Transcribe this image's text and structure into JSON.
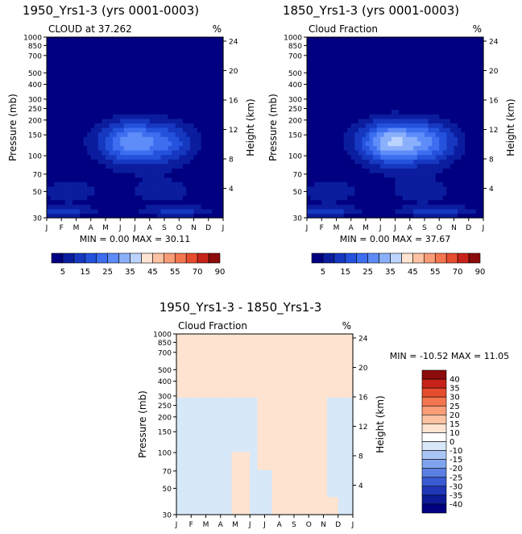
{
  "chart_data": [
    {
      "type": "heatmap",
      "title": "1950_Yrs1-3 (yrs 0001-0003)",
      "subtitle": "CLOUD at 37.262",
      "units": "%",
      "ylabel": "Pressure (mb)",
      "ylabel_right": "Height (km)",
      "x_ticks": [
        "J",
        "F",
        "M",
        "A",
        "M",
        "J",
        "J",
        "A",
        "S",
        "O",
        "N",
        "D",
        "J"
      ],
      "y_ticks": [
        "30",
        "50",
        "70",
        "100",
        "150",
        "200",
        "250",
        "300",
        "400",
        "500",
        "700",
        "850",
        "1000"
      ],
      "y_ticks_right": [
        "24",
        "20",
        "16",
        "12",
        "8",
        "4"
      ],
      "stats": "MIN =   0.00 MAX =  30.11",
      "min": 0.0,
      "max": 30.11,
      "colorbar_labels": [
        "5",
        "15",
        "25",
        "35",
        "45",
        "55",
        "70",
        "90"
      ],
      "field": {
        "peak_month": 6.5,
        "peak_pressure": 230,
        "peak_value": 30.11,
        "low_lobe_value": 10
      }
    },
    {
      "type": "heatmap",
      "title": "1850_Yrs1-3 (yrs 0001-0003)",
      "subtitle": "Cloud Fraction",
      "units": "%",
      "ylabel": "Pressure (mb)",
      "ylabel_right": "Height (km)",
      "x_ticks": [
        "J",
        "F",
        "M",
        "A",
        "M",
        "J",
        "J",
        "A",
        "S",
        "O",
        "N",
        "D",
        "J"
      ],
      "y_ticks": [
        "30",
        "50",
        "70",
        "100",
        "150",
        "200",
        "250",
        "300",
        "400",
        "500",
        "700",
        "850",
        "1000"
      ],
      "y_ticks_right": [
        "24",
        "20",
        "16",
        "12",
        "8",
        "4"
      ],
      "stats": "MIN =   0.00 MAX =  37.67",
      "min": 0.0,
      "max": 37.67,
      "colorbar_labels": [
        "5",
        "15",
        "25",
        "35",
        "45",
        "55",
        "70",
        "90"
      ],
      "field": {
        "peak_month": 6.6,
        "peak_pressure": 230,
        "peak_value": 37.67,
        "low_lobe_value": 12
      }
    },
    {
      "type": "heatmap",
      "title": "1950_Yrs1-3 - 1850_Yrs1-3",
      "subtitle": "Cloud Fraction",
      "units": "%",
      "ylabel": "Pressure (mb)",
      "ylabel_right": "Height (km)",
      "x_ticks": [
        "J",
        "F",
        "M",
        "A",
        "M",
        "J",
        "J",
        "A",
        "S",
        "O",
        "N",
        "D",
        "J"
      ],
      "y_ticks": [
        "30",
        "50",
        "70",
        "100",
        "150",
        "200",
        "250",
        "300",
        "400",
        "500",
        "700",
        "850",
        "1000"
      ],
      "y_ticks_right": [
        "24",
        "20",
        "16",
        "12",
        "8",
        "4"
      ],
      "stats": "MIN = -10.52 MAX =  11.05",
      "min": -10.52,
      "max": 11.05,
      "colorbar_labels": [
        "40",
        "35",
        "30",
        "25",
        "20",
        "15",
        "10",
        "0",
        "-10",
        "-15",
        "-20",
        "-25",
        "-30",
        "-35",
        "-40"
      ]
    }
  ],
  "colors": {
    "abs_scale": [
      "#000080",
      "#0b1d9e",
      "#1638c0",
      "#2452dc",
      "#3d6ef0",
      "#5e8cf8",
      "#8bb0fb",
      "#bcd4fd",
      "#fde3d0",
      "#fcc2a2",
      "#f99d77",
      "#f47650",
      "#e64c2e",
      "#c8231a",
      "#8c0b0b"
    ],
    "diff_scale": [
      "#8c0b0b",
      "#c8231a",
      "#e64c2e",
      "#f47650",
      "#f99d77",
      "#fcc2a2",
      "#fde3d0",
      "#ffffff",
      "#d7e8f9",
      "#a9c5f5",
      "#7fa3ee",
      "#5b7fe3",
      "#3a5ad4",
      "#2038b8",
      "#0d1b96",
      "#000080"
    ],
    "diff_positive": "#fde3d0",
    "diff_negative": "#d7e8f9"
  }
}
